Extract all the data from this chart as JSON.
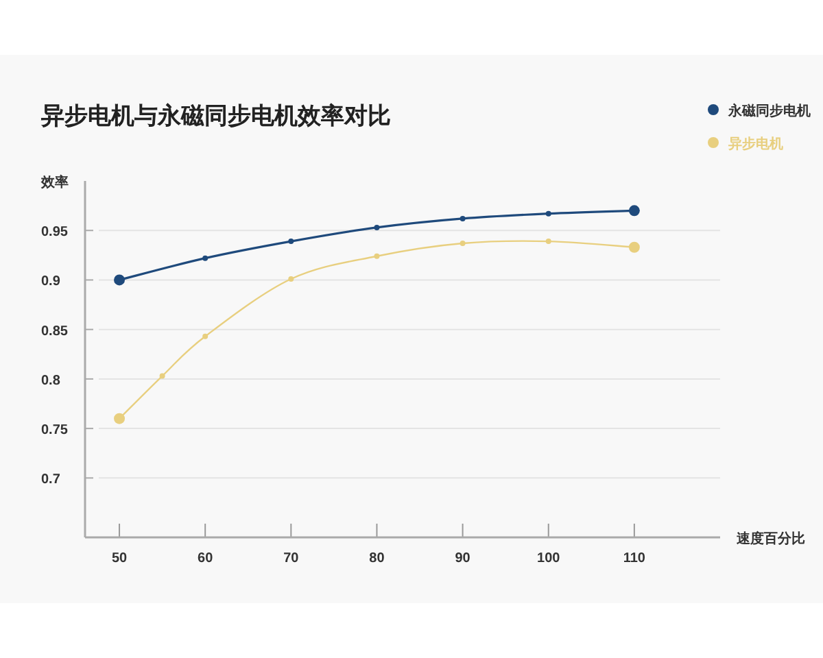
{
  "chart_data": {
    "type": "line",
    "title": "异步电机与永磁同步电机效率对比",
    "ylabel": "效率",
    "xlabel": "速度百分比",
    "xlim": [
      46,
      120
    ],
    "xticks": [
      50,
      60,
      70,
      80,
      90,
      100,
      110
    ],
    "ylim": [
      0.64,
      1.0
    ],
    "yticks": [
      0.7,
      0.75,
      0.8,
      0.85,
      0.9,
      0.95
    ],
    "grid": "y",
    "legend": "top right",
    "marker": "circle",
    "line_style": "solid",
    "series": [
      {
        "name": "永磁同步电机",
        "color": "#1f4a7c",
        "x": [
          50,
          60,
          70,
          80,
          90,
          100,
          110
        ],
        "values": [
          0.9,
          0.922,
          0.939,
          0.953,
          0.962,
          0.967,
          0.97
        ]
      },
      {
        "name": "异步电机",
        "color": "#e8cf7f",
        "x": [
          50,
          55,
          60,
          70,
          80,
          90,
          100,
          110
        ],
        "values": [
          0.76,
          0.803,
          0.843,
          0.901,
          0.924,
          0.937,
          0.939,
          0.933
        ]
      }
    ]
  }
}
